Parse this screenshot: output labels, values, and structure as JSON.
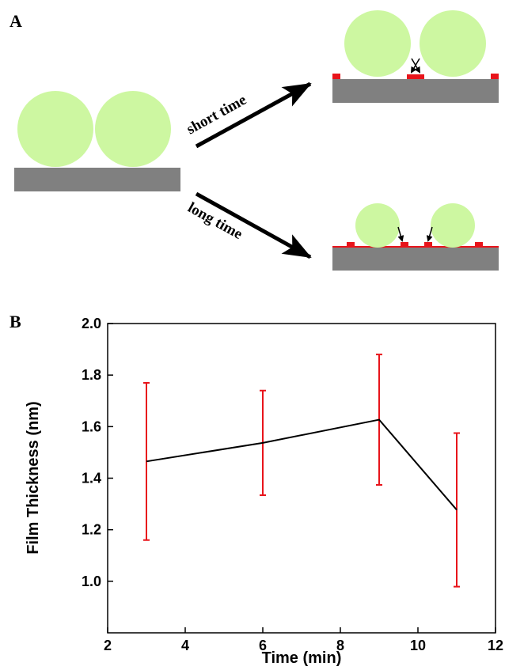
{
  "diagram": {
    "label": "A",
    "upper_arrow": "short time",
    "lower_arrow": "long time"
  },
  "chart_data": {
    "type": "line",
    "panel_label": "B",
    "xlabel": "Time (min)",
    "ylabel": "Film Thickness (nm)",
    "x": [
      3,
      6,
      9,
      11
    ],
    "series": [
      {
        "color": "#000000",
        "error_color": "#e8141b",
        "values": [
          1.465,
          1.537,
          1.627,
          1.277
        ],
        "errors": [
          0.305,
          0.203,
          0.253,
          0.298
        ]
      }
    ],
    "xlim": [
      2,
      12
    ],
    "xticks": [
      2,
      4,
      6,
      8,
      10,
      12
    ],
    "ylim": [
      0.8,
      2.0
    ],
    "yticks": [
      {
        "value": 1.0,
        "label": "1.0"
      },
      {
        "value": 1.2,
        "label": "1.2"
      },
      {
        "value": 1.4,
        "label": "1.4"
      },
      {
        "value": 1.6,
        "label": "1.6"
      },
      {
        "value": 1.8,
        "label": "1.8"
      },
      {
        "value": 2.0,
        "label": "2.0"
      }
    ]
  }
}
